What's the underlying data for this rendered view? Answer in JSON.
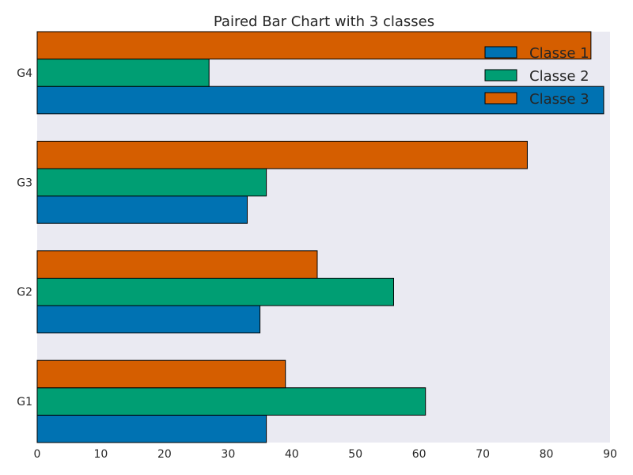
{
  "chart_data": {
    "type": "bar",
    "orientation": "horizontal",
    "title": "Paired Bar Chart with 3 classes",
    "xlabel": "",
    "ylabel": "",
    "categories": [
      "G1",
      "G2",
      "G3",
      "G4"
    ],
    "series": [
      {
        "name": "Classe 1",
        "values": [
          36,
          35,
          33,
          89
        ],
        "color": "#0072B2"
      },
      {
        "name": "Classe 2",
        "values": [
          61,
          56,
          36,
          27
        ],
        "color": "#009E73"
      },
      {
        "name": "Classe 3",
        "values": [
          39,
          44,
          77,
          87
        ],
        "color": "#D55E00"
      }
    ],
    "xlim": [
      0,
      90
    ],
    "xticks": [
      0,
      10,
      20,
      30,
      40,
      50,
      60,
      70,
      80,
      90
    ],
    "grid": false,
    "background": "#EAEAF2",
    "legend_position": "upper right"
  }
}
